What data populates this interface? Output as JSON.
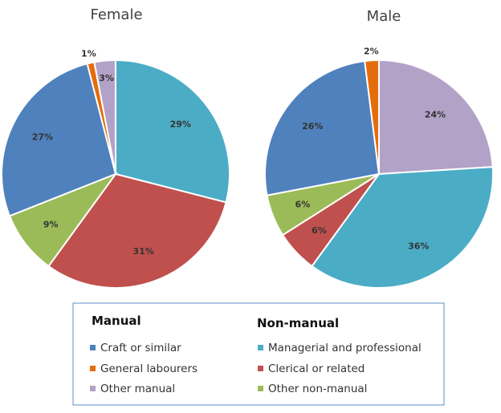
{
  "chart_data": [
    {
      "type": "pie",
      "title": "Female",
      "slices": [
        {
          "label": "Managerial and professional",
          "value": 29,
          "text": "29%",
          "color": "#4bacc6"
        },
        {
          "label": "Clerical or related",
          "value": 31,
          "text": "31%",
          "color": "#c0504d"
        },
        {
          "label": "Other non-manual",
          "value": 9,
          "text": "9%",
          "color": "#9bbb59"
        },
        {
          "label": "Craft or similar",
          "value": 27,
          "text": "27%",
          "color": "#4f81bd"
        },
        {
          "label": "General labourers",
          "value": 1,
          "text": "1%",
          "color": "#e46c0a"
        },
        {
          "label": "Other manual",
          "value": 3,
          "text": "3%",
          "color": "#b3a2c7"
        }
      ]
    },
    {
      "type": "pie",
      "title": "Male",
      "slices": [
        {
          "label": "Other manual",
          "value": 24,
          "text": "24%",
          "color": "#b3a2c7"
        },
        {
          "label": "Managerial and professional",
          "value": 36,
          "text": "36%",
          "color": "#4bacc6"
        },
        {
          "label": "Clerical or related",
          "value": 6,
          "text": "6%",
          "color": "#c0504d"
        },
        {
          "label": "Other non-manual",
          "value": 6,
          "text": "6%",
          "color": "#9bbb59"
        },
        {
          "label": "Craft or similar",
          "value": 26,
          "text": "26%",
          "color": "#4f81bd"
        },
        {
          "label": "General labourers",
          "value": 2,
          "text": "2%",
          "color": "#e46c0a"
        }
      ]
    }
  ],
  "legend": {
    "placement": "bottom",
    "groups": [
      {
        "heading": "Manual",
        "items": [
          {
            "label": "Craft or similar",
            "color": "#4f81bd"
          },
          {
            "label": "General labourers",
            "color": "#e46c0a"
          },
          {
            "label": "Other manual",
            "color": "#b3a2c7"
          }
        ]
      },
      {
        "heading": "Non-manual",
        "items": [
          {
            "label": "Managerial and professional",
            "color": "#4bacc6"
          },
          {
            "label": "Clerical or related",
            "color": "#c0504d"
          },
          {
            "label": "Other non-manual",
            "color": "#9bbb59"
          }
        ]
      }
    ]
  }
}
